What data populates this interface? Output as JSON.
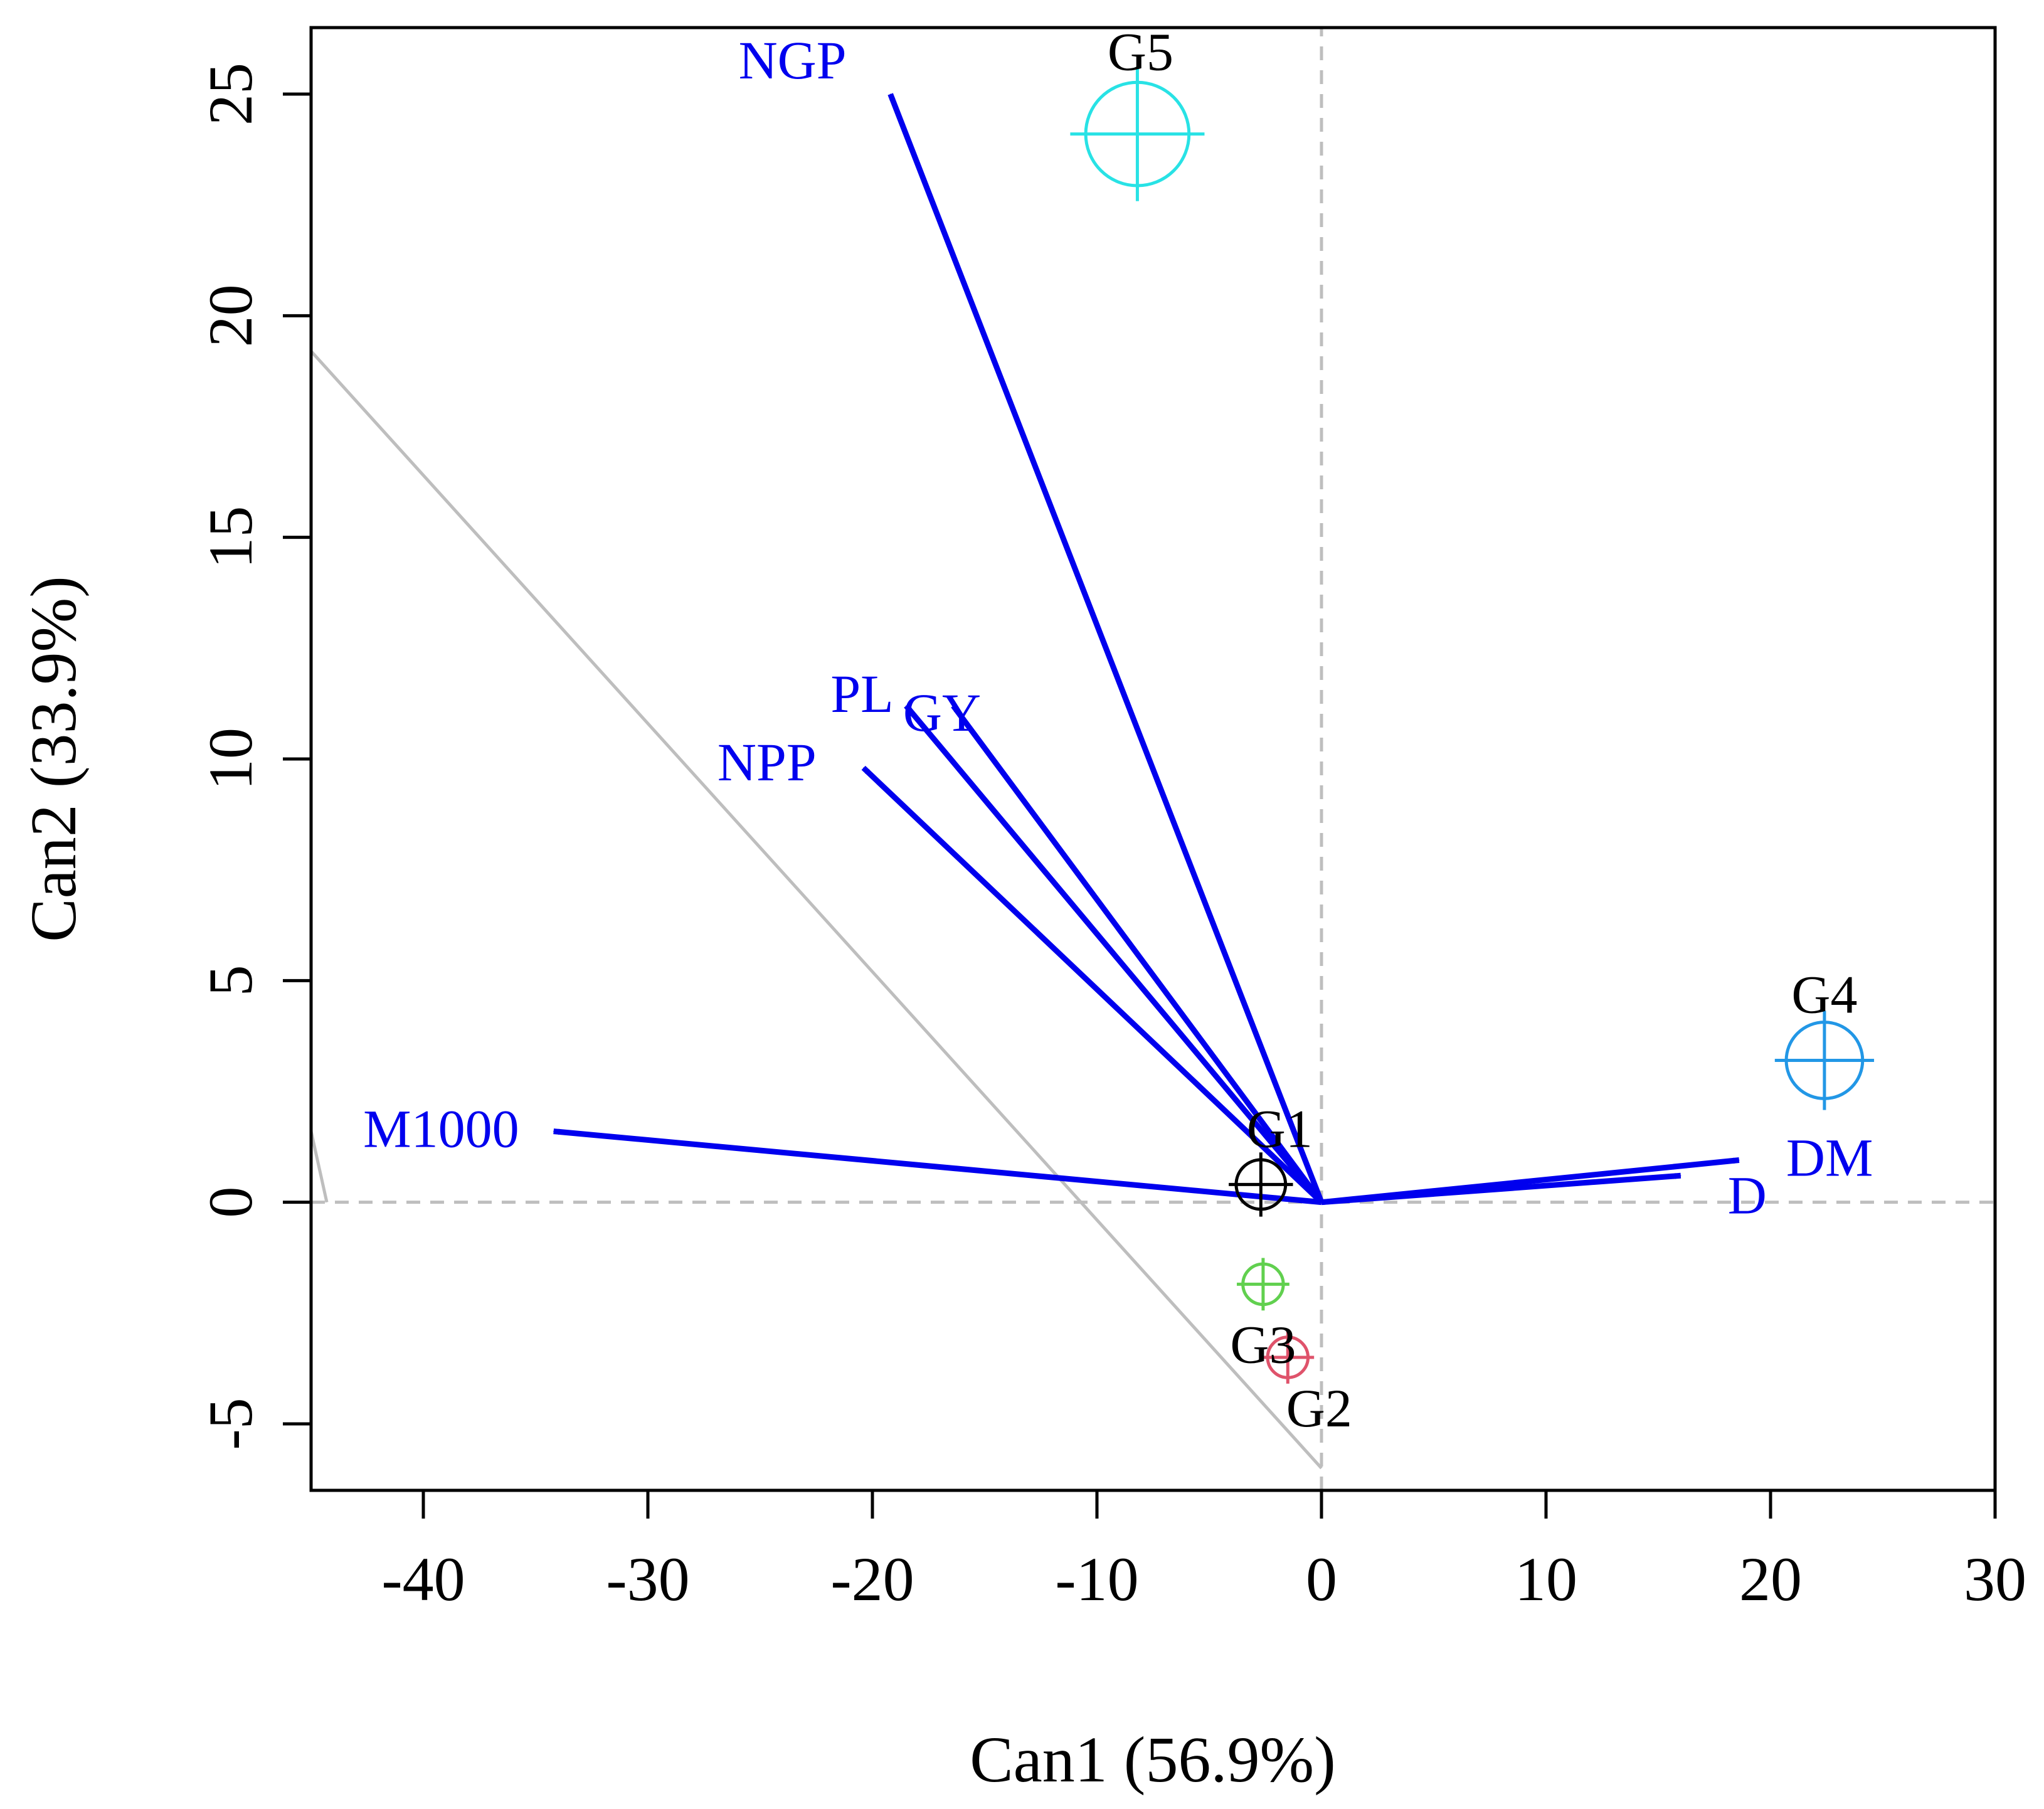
{
  "chart_data": {
    "type": "scatter",
    "subtype": "canonical-discriminant-biplot",
    "title": "",
    "xlabel": "Can1 (56.9%)",
    "ylabel": "Can2 (33.9%)",
    "xlim": [
      -45,
      30
    ],
    "ylim": [
      -6.5,
      26.5
    ],
    "x_ticks": [
      -40,
      -30,
      -20,
      -10,
      0,
      10,
      20,
      30
    ],
    "y_ticks": [
      -5,
      0,
      5,
      10,
      15,
      20,
      25
    ],
    "groups": [
      {
        "name": "G1",
        "x": -2.7,
        "y": 0.4,
        "radius": 1.1,
        "color": "#000000"
      },
      {
        "name": "G2",
        "x": -1.5,
        "y": -3.5,
        "radius": 0.9,
        "color": "#DF536B"
      },
      {
        "name": "G3",
        "x": -2.6,
        "y": -1.85,
        "radius": 0.9,
        "color": "#61D04F"
      },
      {
        "name": "G4",
        "x": 22.4,
        "y": 3.2,
        "radius": 1.7,
        "color": "#2297E6"
      },
      {
        "name": "G5",
        "x": -8.2,
        "y": 24.1,
        "radius": 2.3,
        "color": "#28E2E5"
      }
    ],
    "vectors": [
      {
        "name": "NGP",
        "x": -19.2,
        "y": 25.0
      },
      {
        "name": "PL",
        "x": -18.5,
        "y": 11.2
      },
      {
        "name": "GY",
        "x": -16.4,
        "y": 11.2
      },
      {
        "name": "NPP",
        "x": -20.4,
        "y": 9.8
      },
      {
        "name": "M1000",
        "x": -34.2,
        "y": 1.6
      },
      {
        "name": "D",
        "x": 16.0,
        "y": 0.6
      },
      {
        "name": "DM",
        "x": 18.6,
        "y": 0.95
      }
    ],
    "vector_color": "#0000EE",
    "guide_line": {
      "from": [
        -45,
        19.2
      ],
      "to": [
        0,
        -6
      ]
    },
    "grid": false
  }
}
